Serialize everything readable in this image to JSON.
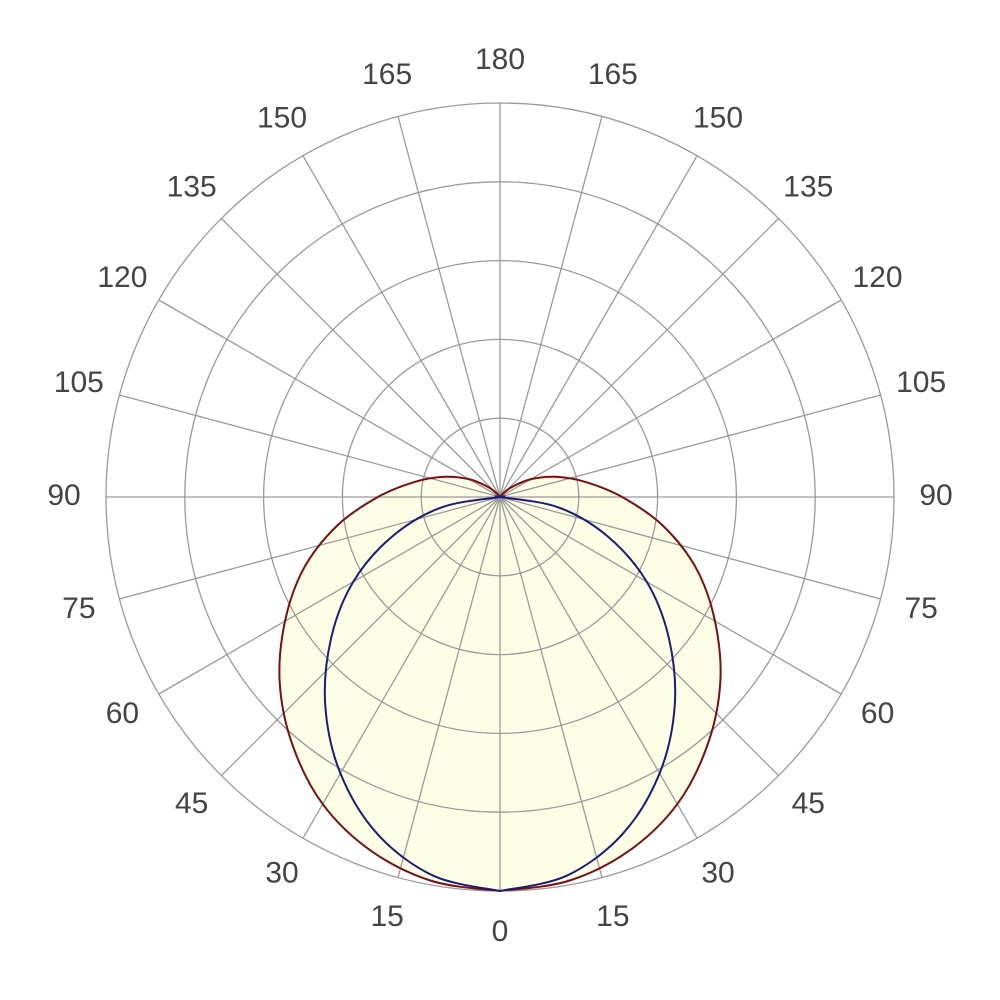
{
  "chart_data": {
    "type": "polar",
    "x": [
      0,
      10,
      20,
      30,
      40,
      50,
      60,
      70,
      80,
      90,
      100,
      110,
      120,
      130,
      140,
      150,
      160,
      170,
      180
    ],
    "series": [
      {
        "color": "#7a0f12",
        "values": [
          5.0,
          4.95,
          4.78,
          4.5,
          4.1,
          3.65,
          3.15,
          2.65,
          2.1,
          1.55,
          1.1,
          0.75,
          0.45,
          0.2,
          0.05,
          0,
          0,
          0,
          0
        ]
      },
      {
        "color": "#1c1c78",
        "values": [
          5.0,
          4.88,
          4.55,
          4.05,
          3.45,
          2.8,
          2.15,
          1.45,
          0.75,
          0,
          0,
          0,
          0,
          0,
          0,
          0,
          0,
          0,
          0
        ]
      }
    ],
    "fill_color": "#fdfde6",
    "thetaticks": [
      0,
      15,
      30,
      45,
      60,
      75,
      90,
      105,
      120,
      135,
      150,
      165,
      180
    ],
    "rlim": [
      0,
      5
    ],
    "rticks": [
      1,
      2,
      3,
      4,
      5
    ],
    "grid": true
  }
}
